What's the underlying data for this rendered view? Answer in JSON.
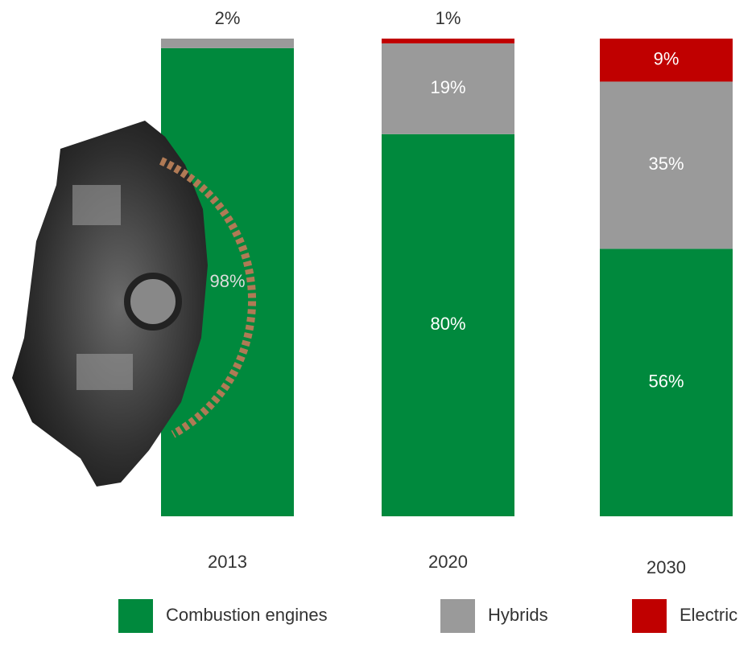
{
  "chart_data": {
    "type": "stacked_bar",
    "categories": [
      "2013",
      "2020",
      "2030"
    ],
    "series": [
      {
        "name": "Combustion engines",
        "color": "#00893d",
        "values": [
          98,
          80,
          56
        ],
        "value_labels": [
          "98%",
          "80%",
          "56%"
        ]
      },
      {
        "name": "Hybrids",
        "color": "#9a9a9a",
        "values": [
          2,
          19,
          35
        ],
        "value_labels": [
          "2%",
          "19%",
          "35%"
        ]
      },
      {
        "name": "Electric",
        "color": "#c00000",
        "values": [
          0,
          1,
          9
        ],
        "value_labels": [
          null,
          "1%",
          "9%"
        ]
      }
    ]
  }
}
